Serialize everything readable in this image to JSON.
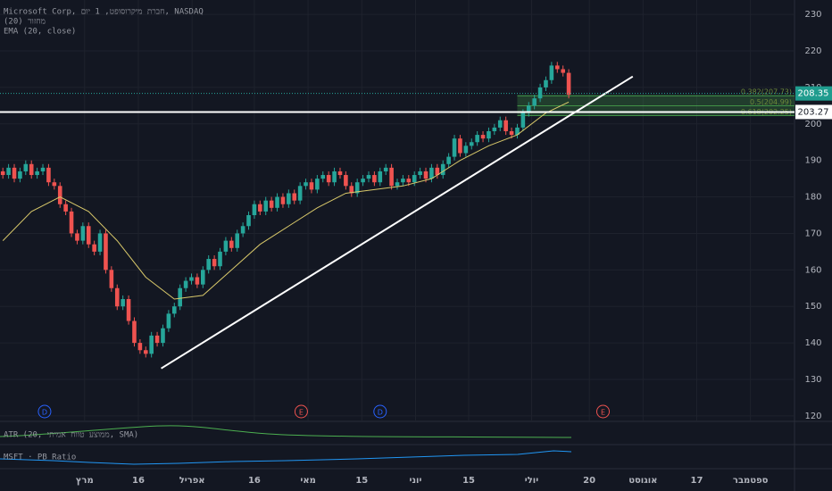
{
  "chart_data": {
    "type": "candlestick",
    "legend_lines": [
      "Microsoft Corp, חברת מיקרוסופט, 1 יום, NASDAQ",
      "מחזור (20)",
      "EMA (20, close)"
    ],
    "open": [
      187,
      186,
      188,
      185,
      187,
      189,
      186,
      187,
      188,
      184,
      183,
      178,
      176,
      170,
      168,
      172,
      167,
      165,
      170,
      160,
      155,
      150,
      152,
      146,
      140,
      138,
      137,
      142,
      140,
      144,
      148,
      150,
      155,
      157,
      158,
      156,
      160,
      163,
      161,
      165,
      168,
      166,
      170,
      172,
      175,
      178,
      176,
      179,
      177,
      180,
      178,
      181,
      179,
      183,
      184,
      182,
      185,
      186,
      184,
      187,
      186,
      183,
      181,
      184,
      185,
      186,
      184,
      187,
      188,
      183,
      184,
      185,
      184,
      186,
      187,
      185,
      188,
      186,
      189,
      191,
      196,
      192,
      194,
      195,
      197,
      196,
      198,
      199,
      201,
      198,
      197,
      199,
      203,
      205,
      207,
      210,
      212,
      216,
      215,
      214
    ],
    "high": [
      188,
      189,
      189,
      188,
      190,
      190,
      188,
      189,
      189,
      185,
      184,
      179,
      177,
      171,
      173,
      173,
      168,
      171,
      171,
      161,
      156,
      153,
      153,
      147,
      141,
      139,
      143,
      143,
      145,
      149,
      151,
      156,
      158,
      159,
      159,
      161,
      164,
      164,
      166,
      169,
      169,
      171,
      173,
      176,
      179,
      179,
      180,
      180,
      181,
      181,
      182,
      182,
      184,
      185,
      185,
      186,
      187,
      187,
      188,
      188,
      187,
      184,
      185,
      186,
      187,
      187,
      188,
      189,
      189,
      185,
      186,
      186,
      187,
      188,
      188,
      189,
      189,
      190,
      192,
      197,
      197,
      195,
      196,
      198,
      198,
      199,
      200,
      202,
      202,
      199,
      200,
      204,
      206,
      208,
      211,
      213,
      217,
      217,
      216,
      215
    ],
    "low": [
      185,
      185,
      184,
      184,
      186,
      185,
      185,
      186,
      183,
      182,
      177,
      175,
      169,
      167,
      167,
      166,
      164,
      164,
      159,
      154,
      149,
      149,
      145,
      139,
      137,
      136,
      136,
      139,
      139,
      143,
      147,
      149,
      154,
      156,
      155,
      155,
      159,
      160,
      160,
      164,
      165,
      165,
      169,
      171,
      174,
      175,
      175,
      176,
      176,
      177,
      177,
      178,
      178,
      182,
      181,
      181,
      184,
      183,
      183,
      185,
      182,
      180,
      180,
      183,
      184,
      183,
      183,
      186,
      182,
      182,
      183,
      183,
      183,
      185,
      184,
      184,
      185,
      185,
      188,
      190,
      191,
      191,
      193,
      194,
      195,
      195,
      197,
      198,
      197,
      196,
      196,
      198,
      202,
      204,
      206,
      209,
      211,
      214,
      213,
      207
    ],
    "close": [
      186,
      188,
      185,
      187,
      189,
      186,
      187,
      188,
      184,
      183,
      178,
      176,
      170,
      168,
      172,
      167,
      165,
      170,
      160,
      155,
      150,
      152,
      146,
      140,
      138,
      137,
      142,
      140,
      144,
      148,
      150,
      155,
      157,
      158,
      156,
      160,
      163,
      161,
      165,
      168,
      166,
      170,
      172,
      175,
      178,
      176,
      179,
      177,
      180,
      178,
      181,
      179,
      183,
      184,
      182,
      185,
      186,
      184,
      187,
      186,
      183,
      181,
      184,
      185,
      186,
      184,
      187,
      188,
      183,
      184,
      185,
      184,
      186,
      187,
      185,
      188,
      186,
      189,
      191,
      196,
      192,
      194,
      195,
      197,
      196,
      198,
      199,
      201,
      198,
      197,
      199,
      203,
      205,
      207,
      210,
      212,
      216,
      215,
      214,
      208
    ],
    "up_color": "#26a69a",
    "down_color": "#ef5350",
    "ema": {
      "x": [
        0,
        5,
        10,
        15,
        20,
        25,
        30,
        35,
        40,
        45,
        50,
        55,
        60,
        65,
        70,
        75,
        80,
        85,
        90,
        95,
        99
      ],
      "values": [
        168,
        176,
        180,
        176,
        168,
        158,
        152,
        153,
        160,
        167,
        172,
        177,
        181,
        182,
        183,
        185,
        190,
        194,
        197,
        203,
        206
      ],
      "color": "#d8c86a"
    },
    "trendline": {
      "x": [
        27.7,
        110.2
      ],
      "values": [
        133,
        213
      ]
    },
    "hline": 203.27,
    "last_price": 208.35,
    "fib_levels": [
      {
        "value": 207.73,
        "label": "0.382(207.73)"
      },
      {
        "value": 204.99,
        "label": "0.5(204.99)"
      },
      {
        "value": 202.25,
        "label": "0.618(202.25)"
      }
    ],
    "events": [
      {
        "x": 7.3,
        "label": "D"
      },
      {
        "x": 52.2,
        "label": "E"
      },
      {
        "x": 66,
        "label": "D"
      },
      {
        "x": 105,
        "label": "E"
      }
    ],
    "xlim": [
      -0.5,
      138.5
    ],
    "xticks": [
      {
        "value": 14.3,
        "label": "מרץ"
      },
      {
        "value": 23.7,
        "label": "16"
      },
      {
        "value": 33.1,
        "label": "אפריל"
      },
      {
        "value": 44,
        "label": "16"
      },
      {
        "value": 53.4,
        "label": "מאי"
      },
      {
        "value": 62.8,
        "label": "15"
      },
      {
        "value": 72.2,
        "label": "יוני"
      },
      {
        "value": 81.5,
        "label": "15"
      },
      {
        "value": 92.5,
        "label": "יולי"
      },
      {
        "value": 102.6,
        "label": "20"
      },
      {
        "value": 112,
        "label": "אוגוסט"
      },
      {
        "value": 121.4,
        "label": "17"
      },
      {
        "value": 130.8,
        "label": "ספטמבר"
      }
    ],
    "ylim": [
      118,
      232
    ],
    "yticks": [
      120,
      130,
      140,
      150,
      160,
      170,
      180,
      190,
      200,
      210,
      220,
      230
    ],
    "atr_label": "ATR (20, ממוצע טווח אמיתי, SMA)",
    "pb_label": "MSFT · PB Ratio"
  }
}
